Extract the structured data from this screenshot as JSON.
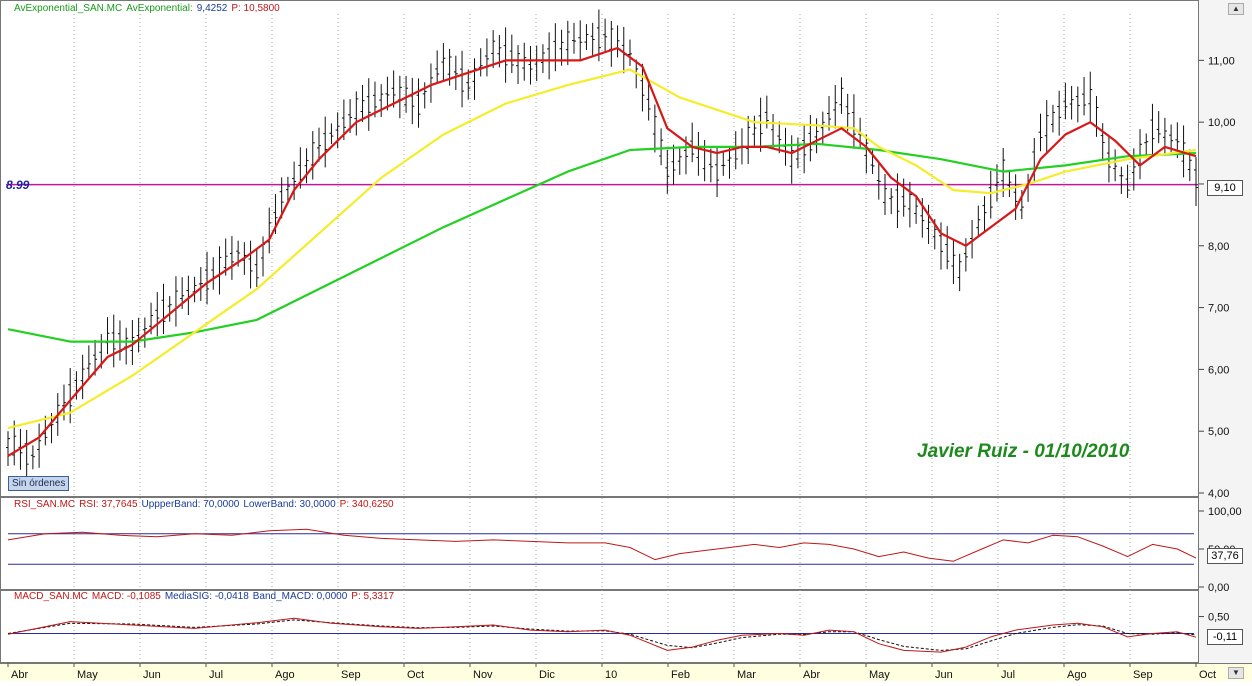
{
  "headers": {
    "main": [
      {
        "text": "AvExponential_SAN.MC",
        "color": "green"
      },
      {
        "text": "AvExponential:",
        "color": "green"
      },
      {
        "text": "9,4252",
        "color": "blue"
      },
      {
        "text": "P: 10,5800",
        "color": "red"
      }
    ],
    "rsi": [
      {
        "text": "RSI_SAN.MC",
        "color": "red"
      },
      {
        "text": "RSI: 37,7645",
        "color": "red"
      },
      {
        "text": "UppperBand: 70,0000",
        "color": "blue"
      },
      {
        "text": "LowerBand: 30,0000",
        "color": "blue"
      },
      {
        "text": "P: 340,6250",
        "color": "red"
      }
    ],
    "macd": [
      {
        "text": "MACD_SAN.MC",
        "color": "red"
      },
      {
        "text": "MACD: -0,1085",
        "color": "red"
      },
      {
        "text": "MediaSIG: -0,0418",
        "color": "blue"
      },
      {
        "text": "Band_MACD: 0,0000",
        "color": "blue"
      },
      {
        "text": "P: 5,3317",
        "color": "red"
      }
    ]
  },
  "sin_ordenes_label": "Sin órdenes",
  "author_label": "Javier Ruiz - 01/10/2010",
  "level_label": "8.99",
  "badges": {
    "price": "9,10",
    "rsi": "37,76",
    "macd": "-0,11"
  },
  "colors": {
    "price_bars": "#111111",
    "ema_short": "#d81818",
    "ema_medium": "#f5ec2a",
    "ema_long": "#22d022",
    "level_line": "#c0189a",
    "rsi_line": "#c01818",
    "band_line": "#2a2aa0",
    "macd_line": "#c01818",
    "signal_line": "#111111",
    "axis_bg": "#ffffe0"
  },
  "chart_data": [
    {
      "type": "line",
      "panel": "price",
      "series_label": "AvExponential_SAN.MC",
      "ylim": [
        4.0,
        11.75
      ],
      "y_ticks": [
        "4,00",
        "5,00",
        "6,00",
        "7,00",
        "8,00",
        "9,00",
        "10,00",
        "11,00"
      ],
      "x_ticks": [
        "Abr",
        "May",
        "Jun",
        "Jul",
        "Ago",
        "Sep",
        "Oct",
        "Nov",
        "Dic",
        "10",
        "Feb",
        "Mar",
        "Abr",
        "May",
        "Jun",
        "Jul",
        "Ago",
        "Sep",
        "Oct"
      ],
      "level": 8.99,
      "price_path": [
        [
          0,
          4.8
        ],
        [
          4,
          4.6
        ],
        [
          10,
          5.6
        ],
        [
          16,
          6.5
        ],
        [
          20,
          6.4
        ],
        [
          24,
          6.9
        ],
        [
          30,
          7.3
        ],
        [
          37,
          7.9
        ],
        [
          40,
          7.6
        ],
        [
          44,
          8.8
        ],
        [
          50,
          9.6
        ],
        [
          56,
          10.2
        ],
        [
          62,
          10.5
        ],
        [
          66,
          10.3
        ],
        [
          70,
          11.0
        ],
        [
          74,
          10.6
        ],
        [
          78,
          11.2
        ],
        [
          84,
          10.9
        ],
        [
          90,
          11.3
        ],
        [
          96,
          11.4
        ],
        [
          100,
          11.1
        ],
        [
          103,
          10.3
        ],
        [
          106,
          9.2
        ],
        [
          110,
          9.6
        ],
        [
          114,
          9.2
        ],
        [
          118,
          9.6
        ],
        [
          122,
          10.1
        ],
        [
          126,
          9.4
        ],
        [
          130,
          9.8
        ],
        [
          134,
          10.4
        ],
        [
          137,
          9.8
        ],
        [
          141,
          8.8
        ],
        [
          145,
          8.7
        ],
        [
          149,
          8.2
        ],
        [
          153,
          7.6
        ],
        [
          157,
          8.6
        ],
        [
          160,
          9.2
        ],
        [
          163,
          8.6
        ],
        [
          166,
          9.8
        ],
        [
          170,
          10.3
        ],
        [
          174,
          10.4
        ],
        [
          177,
          9.4
        ],
        [
          180,
          9.0
        ],
        [
          184,
          9.9
        ],
        [
          188,
          9.7
        ],
        [
          191,
          9.1
        ]
      ],
      "series": [
        {
          "name": "AvExponential",
          "key": "ema_long",
          "points": [
            [
              0,
              6.65
            ],
            [
              10,
              6.45
            ],
            [
              20,
              6.45
            ],
            [
              30,
              6.6
            ],
            [
              40,
              6.8
            ],
            [
              50,
              7.3
            ],
            [
              60,
              7.8
            ],
            [
              70,
              8.3
            ],
            [
              80,
              8.75
            ],
            [
              90,
              9.2
            ],
            [
              100,
              9.55
            ],
            [
              110,
              9.6
            ],
            [
              120,
              9.6
            ],
            [
              130,
              9.65
            ],
            [
              140,
              9.55
            ],
            [
              150,
              9.4
            ],
            [
              160,
              9.2
            ],
            [
              170,
              9.3
            ],
            [
              180,
              9.45
            ],
            [
              191,
              9.5
            ]
          ]
        },
        {
          "name": "AvExponential",
          "key": "ema_medium",
          "points": [
            [
              0,
              5.05
            ],
            [
              10,
              5.3
            ],
            [
              20,
              5.9
            ],
            [
              30,
              6.6
            ],
            [
              40,
              7.3
            ],
            [
              50,
              8.2
            ],
            [
              60,
              9.1
            ],
            [
              70,
              9.8
            ],
            [
              80,
              10.3
            ],
            [
              90,
              10.6
            ],
            [
              100,
              10.85
            ],
            [
              108,
              10.4
            ],
            [
              114,
              10.2
            ],
            [
              120,
              10.0
            ],
            [
              130,
              9.95
            ],
            [
              136,
              9.9
            ],
            [
              140,
              9.6
            ],
            [
              146,
              9.3
            ],
            [
              152,
              8.9
            ],
            [
              158,
              8.85
            ],
            [
              164,
              9.0
            ],
            [
              170,
              9.2
            ],
            [
              180,
              9.4
            ],
            [
              191,
              9.55
            ]
          ]
        },
        {
          "name": "AvExponential",
          "key": "ema_short",
          "points": [
            [
              0,
              4.6
            ],
            [
              5,
              4.9
            ],
            [
              10,
              5.5
            ],
            [
              16,
              6.2
            ],
            [
              20,
              6.4
            ],
            [
              26,
              6.9
            ],
            [
              32,
              7.4
            ],
            [
              38,
              7.8
            ],
            [
              42,
              8.1
            ],
            [
              46,
              8.9
            ],
            [
              50,
              9.4
            ],
            [
              56,
              10.0
            ],
            [
              62,
              10.3
            ],
            [
              68,
              10.6
            ],
            [
              74,
              10.8
            ],
            [
              80,
              11.0
            ],
            [
              86,
              11.0
            ],
            [
              92,
              11.0
            ],
            [
              98,
              11.2
            ],
            [
              102,
              10.9
            ],
            [
              106,
              9.9
            ],
            [
              110,
              9.6
            ],
            [
              114,
              9.5
            ],
            [
              118,
              9.6
            ],
            [
              122,
              9.6
            ],
            [
              126,
              9.5
            ],
            [
              130,
              9.7
            ],
            [
              134,
              9.9
            ],
            [
              138,
              9.6
            ],
            [
              142,
              9.1
            ],
            [
              146,
              8.8
            ],
            [
              150,
              8.2
            ],
            [
              154,
              8.0
            ],
            [
              158,
              8.3
            ],
            [
              162,
              8.6
            ],
            [
              166,
              9.4
            ],
            [
              170,
              9.8
            ],
            [
              174,
              10.0
            ],
            [
              178,
              9.7
            ],
            [
              182,
              9.3
            ],
            [
              186,
              9.6
            ],
            [
              191,
              9.45
            ]
          ]
        }
      ]
    },
    {
      "type": "line",
      "panel": "rsi",
      "series_label": "RSI_SAN.MC",
      "ylim": [
        0,
        100
      ],
      "y_ticks": [
        "0,00",
        "50,00",
        "100,00"
      ],
      "bands": [
        70,
        30
      ],
      "points": [
        [
          0,
          62
        ],
        [
          6,
          70
        ],
        [
          12,
          72
        ],
        [
          18,
          68
        ],
        [
          24,
          66
        ],
        [
          30,
          70
        ],
        [
          36,
          68
        ],
        [
          42,
          74
        ],
        [
          48,
          76
        ],
        [
          54,
          68
        ],
        [
          60,
          64
        ],
        [
          66,
          62
        ],
        [
          72,
          60
        ],
        [
          78,
          62
        ],
        [
          84,
          60
        ],
        [
          90,
          58
        ],
        [
          96,
          58
        ],
        [
          100,
          52
        ],
        [
          104,
          36
        ],
        [
          108,
          44
        ],
        [
          112,
          48
        ],
        [
          116,
          52
        ],
        [
          120,
          56
        ],
        [
          124,
          52
        ],
        [
          128,
          58
        ],
        [
          132,
          56
        ],
        [
          136,
          50
        ],
        [
          140,
          40
        ],
        [
          144,
          46
        ],
        [
          148,
          38
        ],
        [
          152,
          34
        ],
        [
          156,
          48
        ],
        [
          160,
          62
        ],
        [
          164,
          58
        ],
        [
          168,
          68
        ],
        [
          172,
          66
        ],
        [
          176,
          54
        ],
        [
          180,
          40
        ],
        [
          184,
          56
        ],
        [
          188,
          50
        ],
        [
          191,
          38
        ]
      ]
    },
    {
      "type": "line",
      "panel": "macd",
      "series_label": "MACD_SAN.MC",
      "ylim": [
        -0.9,
        0.9
      ],
      "y_ticks": [
        "0,50"
      ],
      "series": [
        {
          "name": "MACD",
          "key": "macd_line",
          "points": [
            [
              0,
              -0.02
            ],
            [
              10,
              0.35
            ],
            [
              20,
              0.25
            ],
            [
              30,
              0.15
            ],
            [
              40,
              0.32
            ],
            [
              46,
              0.45
            ],
            [
              52,
              0.3
            ],
            [
              60,
              0.2
            ],
            [
              66,
              0.15
            ],
            [
              72,
              0.2
            ],
            [
              78,
              0.25
            ],
            [
              84,
              0.1
            ],
            [
              90,
              0.05
            ],
            [
              96,
              0.1
            ],
            [
              100,
              -0.05
            ],
            [
              106,
              -0.5
            ],
            [
              110,
              -0.4
            ],
            [
              114,
              -0.2
            ],
            [
              118,
              -0.05
            ],
            [
              124,
              0.0
            ],
            [
              128,
              -0.05
            ],
            [
              132,
              0.1
            ],
            [
              136,
              0.05
            ],
            [
              140,
              -0.3
            ],
            [
              144,
              -0.5
            ],
            [
              150,
              -0.55
            ],
            [
              154,
              -0.4
            ],
            [
              158,
              -0.1
            ],
            [
              162,
              0.1
            ],
            [
              168,
              0.25
            ],
            [
              172,
              0.3
            ],
            [
              176,
              0.2
            ],
            [
              180,
              -0.1
            ],
            [
              184,
              0.0
            ],
            [
              188,
              0.05
            ],
            [
              191,
              -0.11
            ]
          ]
        },
        {
          "name": "MediaSIG",
          "key": "signal_line",
          "points": [
            [
              0,
              0.0
            ],
            [
              10,
              0.3
            ],
            [
              20,
              0.28
            ],
            [
              30,
              0.18
            ],
            [
              40,
              0.28
            ],
            [
              46,
              0.4
            ],
            [
              52,
              0.32
            ],
            [
              60,
              0.22
            ],
            [
              66,
              0.17
            ],
            [
              72,
              0.18
            ],
            [
              78,
              0.22
            ],
            [
              84,
              0.13
            ],
            [
              90,
              0.07
            ],
            [
              96,
              0.08
            ],
            [
              100,
              -0.02
            ],
            [
              106,
              -0.35
            ],
            [
              110,
              -0.42
            ],
            [
              114,
              -0.28
            ],
            [
              118,
              -0.12
            ],
            [
              124,
              -0.02
            ],
            [
              128,
              -0.03
            ],
            [
              132,
              0.05
            ],
            [
              136,
              0.05
            ],
            [
              140,
              -0.18
            ],
            [
              144,
              -0.38
            ],
            [
              150,
              -0.5
            ],
            [
              154,
              -0.45
            ],
            [
              158,
              -0.22
            ],
            [
              162,
              0.0
            ],
            [
              168,
              0.18
            ],
            [
              172,
              0.26
            ],
            [
              176,
              0.22
            ],
            [
              180,
              0.0
            ],
            [
              184,
              -0.02
            ],
            [
              188,
              0.02
            ],
            [
              191,
              -0.04
            ]
          ]
        }
      ]
    }
  ]
}
